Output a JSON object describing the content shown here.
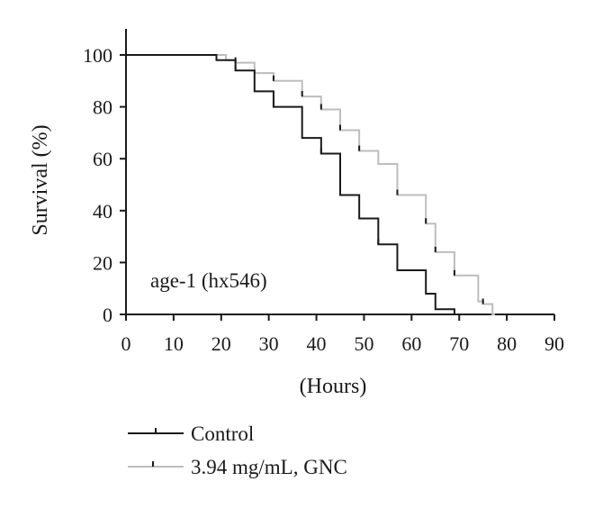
{
  "chart_data": {
    "type": "line",
    "subtype": "kaplan-meier-survival",
    "title": "",
    "annotation": "age-1 (hx546)",
    "xlabel": "(Hours)",
    "ylabel": "Survival (%)",
    "xlim": [
      0,
      90
    ],
    "ylim": [
      0,
      100
    ],
    "xticks": [
      "0",
      "10",
      "20",
      "30",
      "40",
      "50",
      "60",
      "70",
      "80",
      "90"
    ],
    "yticks": [
      "0",
      "20",
      "40",
      "60",
      "80",
      "100"
    ],
    "grid": false,
    "legend_position": "bottom-left",
    "series": [
      {
        "name": "Control",
        "color": "#1a1a1a",
        "steps": [
          [
            0,
            100
          ],
          [
            19,
            98
          ],
          [
            23,
            94
          ],
          [
            27,
            86
          ],
          [
            31,
            80
          ],
          [
            37,
            68
          ],
          [
            41,
            62
          ],
          [
            45,
            46
          ],
          [
            49,
            37
          ],
          [
            53,
            27
          ],
          [
            57,
            17
          ],
          [
            63,
            8
          ],
          [
            65,
            2
          ],
          [
            69,
            0
          ]
        ],
        "censored": [
          [
            19,
            98
          ],
          [
            23,
            94
          ],
          [
            31,
            80
          ],
          [
            41,
            62
          ],
          [
            45,
            46
          ],
          [
            53,
            27
          ]
        ]
      },
      {
        "name": "3.94 mg/mL, GNC",
        "color": "#bdbdbd",
        "steps": [
          [
            0,
            100
          ],
          [
            21,
            98
          ],
          [
            23,
            97
          ],
          [
            27,
            93
          ],
          [
            31,
            90
          ],
          [
            37,
            84
          ],
          [
            41,
            79
          ],
          [
            45,
            71
          ],
          [
            49,
            63
          ],
          [
            53,
            58
          ],
          [
            57,
            46
          ],
          [
            63,
            35
          ],
          [
            65,
            24
          ],
          [
            69,
            15
          ],
          [
            74,
            5
          ],
          [
            75,
            4
          ],
          [
            77,
            0
          ]
        ],
        "censored": [
          [
            23,
            97
          ],
          [
            31,
            90
          ],
          [
            37,
            84
          ],
          [
            41,
            79
          ],
          [
            45,
            71
          ],
          [
            49,
            63
          ],
          [
            57,
            46
          ],
          [
            63,
            35
          ],
          [
            65,
            24
          ],
          [
            69,
            15
          ],
          [
            75,
            4
          ]
        ]
      }
    ]
  }
}
